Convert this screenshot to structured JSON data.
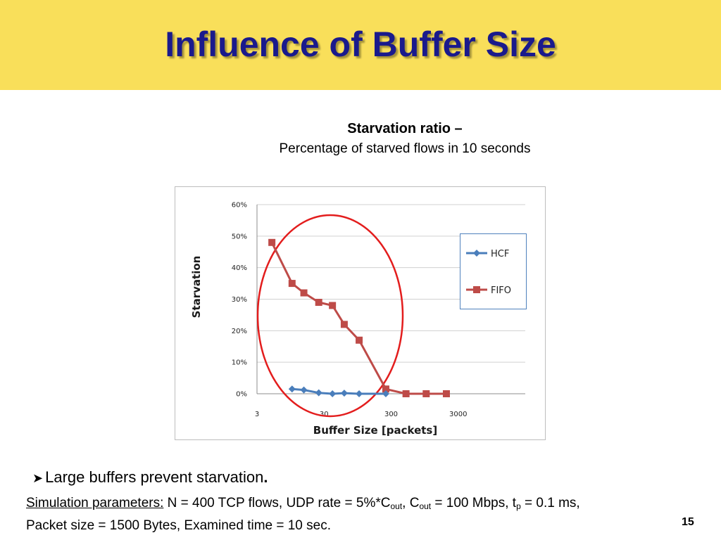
{
  "slide": {
    "title": "Influence of Buffer Size",
    "heading": "Starvation ratio –",
    "subheading": "Percentage of starved flows in 10 seconds",
    "bullet": "Large buffers prevent starvation",
    "bullet_end": ".",
    "params_label": "Simulation parameters:",
    "params_t1": " N = 400 TCP flows, UDP rate = 5%*C",
    "params_s1": "out",
    "params_t2": ", C",
    "params_s2": "out",
    "params_t3": " = 100 Mbps, t",
    "params_s3": "p",
    "params_t4": " = 0.1 ms,",
    "params_line2": "Packet size = 1500 Bytes, Examined time = 10 sec.",
    "page_number": "15"
  },
  "colors": {
    "title_bar": "#f9df5a",
    "title_text": "#1a1a8c",
    "hcf": "#4a7ebb",
    "fifo": "#be4b48",
    "annotation_ellipse": "#e31d1d",
    "legend_border": "#4f81bd"
  },
  "chart_data": {
    "type": "line",
    "xlabel": "Buffer Size [packets]",
    "ylabel": "Starvation",
    "x_scale": "log",
    "x_tick_labels": [
      "3",
      "30",
      "300",
      "3000"
    ],
    "y_tick_labels": [
      "0%",
      "10%",
      "20%",
      "30%",
      "40%",
      "50%",
      "60%"
    ],
    "ylim": [
      0,
      60
    ],
    "grid": true,
    "legend_position": "right",
    "series": [
      {
        "name": "HCF",
        "marker": "diamond",
        "x": [
          10,
          15,
          25,
          40,
          60,
          100,
          250
        ],
        "y": [
          1.5,
          1.2,
          0.3,
          0,
          0.2,
          0,
          0
        ]
      },
      {
        "name": "FIFO",
        "marker": "square",
        "x": [
          5,
          10,
          15,
          25,
          40,
          60,
          100,
          250,
          500,
          1000,
          2000
        ],
        "y": [
          48,
          35,
          32,
          29,
          28,
          22,
          17,
          1.5,
          0,
          0,
          0
        ]
      }
    ],
    "annotation": "ellipse"
  }
}
